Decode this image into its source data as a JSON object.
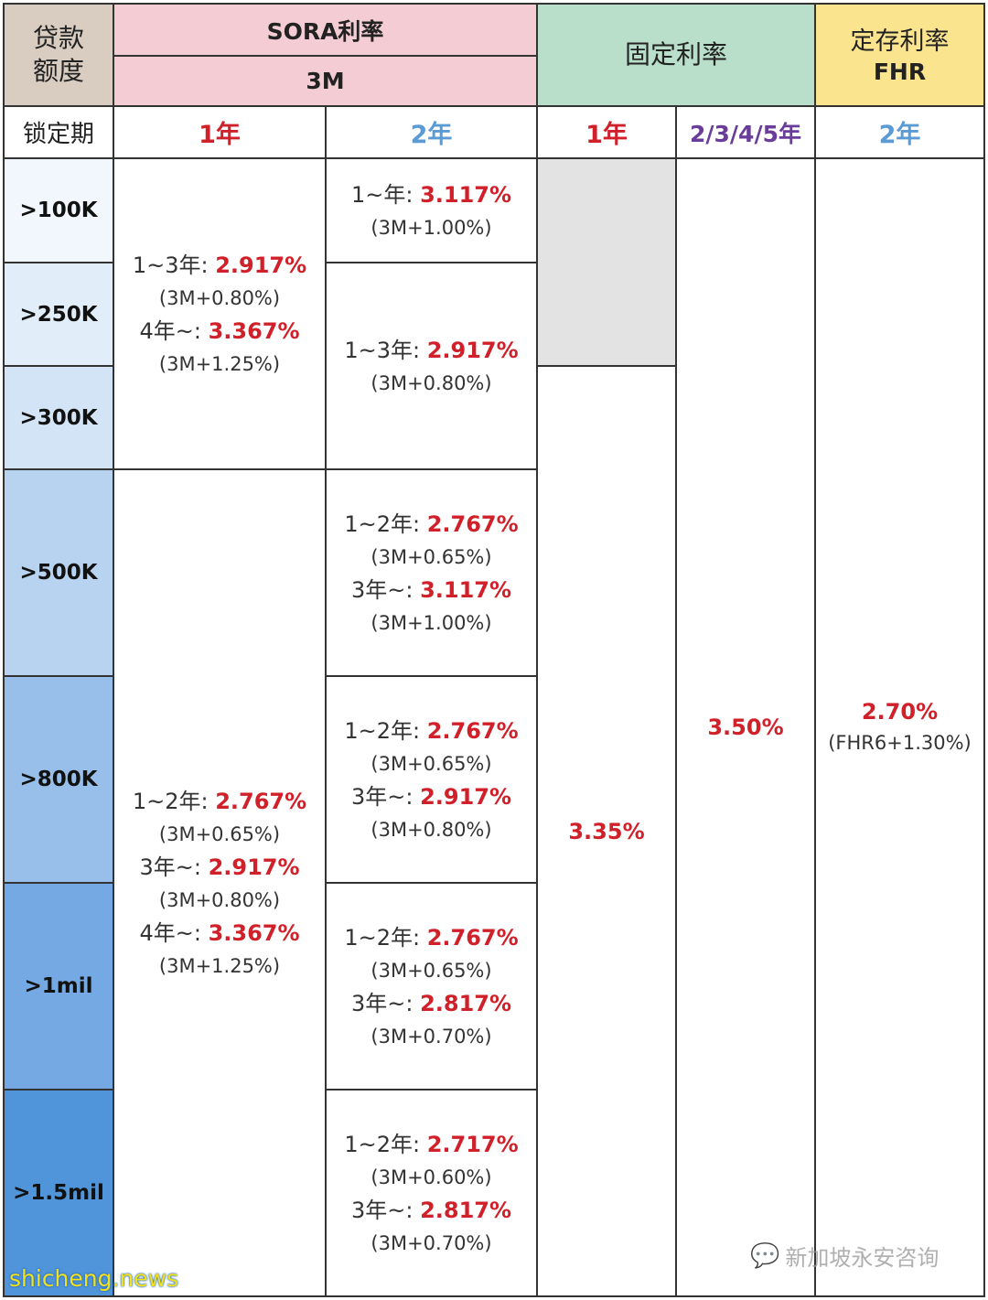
{
  "header": {
    "loan_amount": [
      "贷款",
      "额度"
    ],
    "sora_title": "SORA利率",
    "sora_sub": "3M",
    "fixed_title": "固定利率",
    "fhr_title": "定存利率",
    "fhr_sub": "FHR",
    "lock_label": "锁定期",
    "periods": [
      "1年",
      "2年",
      "1年",
      "2/3/4/5年",
      "2年"
    ]
  },
  "amounts": [
    ">100K",
    ">250K",
    ">300K",
    ">500K",
    ">800K",
    ">1mil",
    ">1.5mil"
  ],
  "sora_1y": [
    {
      "lines": [
        {
          "label": "1~3年: ",
          "rate": "2.917%"
        },
        {
          "sub": "(3M+0.80%)"
        },
        {
          "label": "4年~: ",
          "rate": "3.367%"
        },
        {
          "sub": "(3M+1.25%)"
        }
      ]
    },
    {
      "lines": [
        {
          "label": "1~2年: ",
          "rate": "2.767%"
        },
        {
          "sub": "(3M+0.65%)"
        },
        {
          "label": "3年~: ",
          "rate": "2.917%"
        },
        {
          "sub": "(3M+0.80%)"
        },
        {
          "label": "4年~: ",
          "rate": "3.367%"
        },
        {
          "sub": "(3M+1.25%)"
        }
      ]
    }
  ],
  "sora_2y": [
    {
      "lines": [
        {
          "label": "1~年: ",
          "rate": "3.117%"
        },
        {
          "sub": "(3M+1.00%)"
        }
      ]
    },
    {
      "lines": [
        {
          "label": "1~3年: ",
          "rate": "2.917%"
        },
        {
          "sub": "(3M+0.80%)"
        }
      ]
    },
    {
      "lines": [
        {
          "label": "1~2年: ",
          "rate": "2.767%"
        },
        {
          "sub": "(3M+0.65%)"
        },
        {
          "label": "3年~: ",
          "rate": "3.117%"
        },
        {
          "sub": "(3M+1.00%)"
        }
      ]
    },
    {
      "lines": [
        {
          "label": "1~2年: ",
          "rate": "2.767%"
        },
        {
          "sub": "(3M+0.65%)"
        },
        {
          "label": "3年~: ",
          "rate": "2.917%"
        },
        {
          "sub": "(3M+0.80%)"
        }
      ]
    },
    {
      "lines": [
        {
          "label": "1~2年: ",
          "rate": "2.767%"
        },
        {
          "sub": "(3M+0.65%)"
        },
        {
          "label": "3年~: ",
          "rate": "2.817%"
        },
        {
          "sub": "(3M+0.70%)"
        }
      ]
    },
    {
      "lines": [
        {
          "label": "1~2年: ",
          "rate": "2.717%"
        },
        {
          "sub": "(3M+0.60%)"
        },
        {
          "label": "3年~: ",
          "rate": "2.817%"
        },
        {
          "sub": "(3M+0.70%)"
        }
      ]
    }
  ],
  "fixed_1y": "3.35%",
  "fixed_multi": "3.50%",
  "fhr_2y": {
    "rate": "2.70%",
    "sub": "(FHR6+1.30%)"
  },
  "watermarks": {
    "left": "shicheng.news",
    "right": "新加坡永安咨询"
  },
  "colors": {
    "loan_header": "#d9cdc2",
    "sora_header": "#f3cdd3",
    "fixed_header": "#b9dfcb",
    "fhr_header": "#fbe48e",
    "red_text": "#d0202a",
    "blue_text": "#5b9bd5",
    "purple_text": "#6a3d9a",
    "na_grey": "#e3e3e3"
  }
}
